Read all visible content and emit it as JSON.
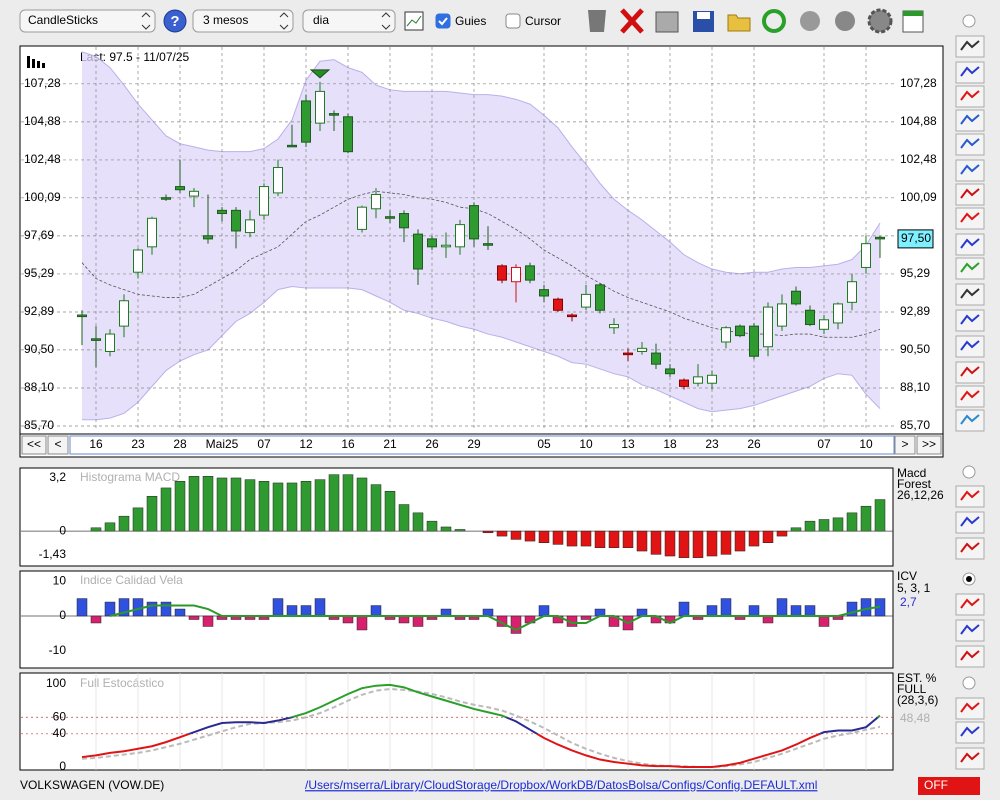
{
  "toolbar": {
    "chart_type": "CandleSticks",
    "help": "?",
    "period": "3 mesos",
    "interval": "dia",
    "guides": {
      "label": "Guies",
      "checked": true
    },
    "cursor": {
      "label": "Cursor",
      "checked": false
    }
  },
  "main": {
    "type": "candlestick",
    "last": "Last: 97.5 - 11/07/25",
    "categories": [
      null,
      "16",
      null,
      null,
      "23",
      null,
      null,
      "28",
      null,
      null,
      "Mai25",
      null,
      null,
      "07",
      null,
      null,
      "12",
      null,
      null,
      "16",
      null,
      null,
      "21",
      null,
      null,
      "26",
      null,
      null,
      "29",
      null,
      null,
      null,
      null,
      "05",
      null,
      null,
      "10",
      null,
      null,
      "13",
      null,
      null,
      "18",
      null,
      null,
      "23",
      null,
      null,
      "26",
      null,
      null,
      null,
      null,
      "07",
      null,
      null,
      "10",
      null
    ],
    "open": [
      92.7,
      91.2,
      90.4,
      92.0,
      95.4,
      97.0,
      100.1,
      100.6,
      100.2,
      97.7,
      99.3,
      99.3,
      97.9,
      99.0,
      100.4,
      103.4,
      106.2,
      104.8,
      105.4,
      105.2,
      98.1,
      99.4,
      98.9,
      99.1,
      97.8,
      97.5,
      97.0,
      97.0,
      99.6,
      97.2,
      95.8,
      94.8,
      95.8,
      94.3,
      93.7,
      92.7,
      93.2,
      94.6,
      92.1,
      90.3,
      90.4,
      90.3,
      89.3,
      88.6,
      88.4,
      88.4,
      91.0,
      92.0,
      92.0,
      90.7,
      92.0,
      94.2,
      93.0,
      91.8,
      92.2,
      93.5,
      95.7,
      97.6
    ],
    "high": [
      93.0,
      92.0,
      91.8,
      94.0,
      96.9,
      98.9,
      100.3,
      102.5,
      100.7,
      100.3,
      99.5,
      99.5,
      99.3,
      101.0,
      102.5,
      104.7,
      106.6,
      107.4,
      105.6,
      105.4,
      99.6,
      100.7,
      99.3,
      99.3,
      98.1,
      97.7,
      97.9,
      98.7,
      99.8,
      98.3,
      95.9,
      95.9,
      96.0,
      94.6,
      93.8,
      92.8,
      94.6,
      94.7,
      92.5,
      90.6,
      91.0,
      90.9,
      89.6,
      88.7,
      89.6,
      89.2,
      92.0,
      92.1,
      92.2,
      93.5,
      94.0,
      94.5,
      93.3,
      92.7,
      93.5,
      95.3,
      97.7,
      97.7
    ],
    "low": [
      90.8,
      89.4,
      90.1,
      91.3,
      95.0,
      96.5,
      99.9,
      100.4,
      99.5,
      97.2,
      98.6,
      96.9,
      97.6,
      98.7,
      100.2,
      103.3,
      103.3,
      104.3,
      104.3,
      102.9,
      97.9,
      98.8,
      98.5,
      97.3,
      94.6,
      96.8,
      96.3,
      96.5,
      97.0,
      96.8,
      94.7,
      93.5,
      94.7,
      93.5,
      92.9,
      92.3,
      93.0,
      92.8,
      91.5,
      89.8,
      90.2,
      89.3,
      88.8,
      88.0,
      88.2,
      88.0,
      90.6,
      91.3,
      89.9,
      90.1,
      91.7,
      93.3,
      92.0,
      91.5,
      91.8,
      93.0,
      95.3,
      96.3
    ],
    "close": [
      92.6,
      91.1,
      91.5,
      93.6,
      96.8,
      98.8,
      100.0,
      100.8,
      100.5,
      97.5,
      99.1,
      98.0,
      98.7,
      100.8,
      102.0,
      103.4,
      103.6,
      106.8,
      105.3,
      103.0,
      99.5,
      100.3,
      98.8,
      98.2,
      95.6,
      97.0,
      97.1,
      98.4,
      97.5,
      97.1,
      94.9,
      95.7,
      94.9,
      93.9,
      93.0,
      92.6,
      94.0,
      93.0,
      91.9,
      90.2,
      90.6,
      89.6,
      89.0,
      88.2,
      88.8,
      88.9,
      91.9,
      91.4,
      90.1,
      93.2,
      93.4,
      93.4,
      92.1,
      92.4,
      93.4,
      94.8,
      97.2,
      97.5
    ],
    "styles": [
      "down",
      "down",
      "up",
      "up",
      "up",
      "up",
      "down",
      "down",
      "up",
      "down",
      "down",
      "down",
      "up",
      "up",
      "up",
      "down",
      "down",
      "up",
      "down",
      "down",
      "up",
      "up",
      "down",
      "down",
      "down",
      "down",
      "up",
      "up",
      "down",
      "down",
      "red",
      "red-up",
      "down",
      "down",
      "red",
      "red",
      "up",
      "down",
      "up",
      "red",
      "up",
      "down",
      "down",
      "red",
      "up",
      "up",
      "up",
      "down",
      "down",
      "up",
      "up",
      "down",
      "down",
      "up",
      "up",
      "up",
      "up",
      "down"
    ],
    "style_colors": {
      "up": [
        "#ffffff",
        "#1f7a1f"
      ],
      "down": [
        "#2f9a2f",
        "#1d5c1d"
      ],
      "red": [
        "#e01414",
        "#8a0000"
      ],
      "red-up": [
        "#ffffff",
        "#d01010"
      ]
    },
    "bands": {
      "color": "#ddd6f8",
      "edge": "#b9b0ea",
      "middle_color": "#555555",
      "upper": [
        109.3,
        109.0,
        108.3,
        107.2,
        106.0,
        105.0,
        104.0,
        103.5,
        103.3,
        103.1,
        103.0,
        103.0,
        103.0,
        103.2,
        103.8,
        105.0,
        107.5,
        108.7,
        108.8,
        108.3,
        108.0,
        107.2,
        106.9,
        106.8,
        106.8,
        106.8,
        106.8,
        106.7,
        106.6,
        106.6,
        106.5,
        106.3,
        106.0,
        105.3,
        104.5,
        103.3,
        102.2,
        101.0,
        100.0,
        99.3,
        98.7,
        98.0,
        97.3,
        96.5,
        96.0,
        95.6,
        95.4,
        95.3,
        95.4,
        95.4,
        95.6,
        95.7,
        95.7,
        95.8,
        95.9,
        96.2,
        97.1,
        98.5
      ],
      "middle": [
        96.0,
        95.0,
        94.6,
        94.3,
        94.0,
        93.9,
        93.8,
        93.8,
        94.0,
        94.5,
        95.0,
        95.5,
        96.2,
        96.6,
        97.0,
        97.8,
        98.6,
        99.0,
        99.5,
        100.0,
        100.3,
        100.5,
        100.4,
        100.3,
        100.1,
        100.0,
        99.8,
        99.5,
        99.4,
        99.1,
        98.6,
        98.1,
        97.5,
        96.8,
        96.3,
        95.8,
        95.2,
        94.7,
        94.2,
        93.8,
        93.5,
        93.2,
        92.9,
        92.5,
        92.2,
        91.9,
        91.7,
        91.6,
        91.5,
        91.5,
        91.4,
        91.5,
        91.5,
        91.3,
        91.3,
        91.3,
        91.5,
        91.8
      ],
      "lower": [
        86.1,
        86.1,
        86.2,
        86.5,
        87.2,
        88.2,
        89.2,
        89.8,
        90.2,
        90.5,
        91.4,
        92.3,
        92.8,
        93.5,
        94.3,
        94.5,
        94.4,
        94.4,
        94.4,
        94.4,
        94.3,
        93.9,
        93.5,
        93.0,
        92.8,
        92.5,
        92.3,
        92.0,
        91.8,
        91.5,
        91.3,
        91.0,
        90.7,
        90.4,
        90.1,
        89.7,
        89.6,
        89.3,
        89.0,
        88.8,
        88.3,
        88.0,
        87.6,
        87.2,
        86.8,
        86.6,
        86.7,
        86.8,
        87.0,
        87.3,
        87.6,
        87.9,
        88.2,
        88.7,
        89.0,
        88.9,
        87.7,
        86.8
      ]
    },
    "ylim": [
      85.45,
      109.6
    ],
    "yticks": [
      {
        "value": 85.7,
        "label": "85,70"
      },
      {
        "value": 88.1,
        "label": "88,10"
      },
      {
        "value": 90.5,
        "label": "90,50"
      },
      {
        "value": 92.89,
        "label": "92,89"
      },
      {
        "value": 95.29,
        "label": "95,29"
      },
      {
        "value": 97.69,
        "label": "97,69"
      },
      {
        "value": 100.09,
        "label": "100,09"
      },
      {
        "value": 102.48,
        "label": "102,48"
      },
      {
        "value": 104.88,
        "label": "104,88"
      },
      {
        "value": 107.28,
        "label": "107,28"
      }
    ],
    "grid": true,
    "last_price": {
      "value": 97.5,
      "label": "97,50"
    },
    "nav": [
      "<<",
      "<",
      ">",
      ">>"
    ]
  },
  "macd": {
    "type": "bar",
    "title": "Histograma MACD",
    "name": "Macd",
    "subtitle": "Forest",
    "params": "26,12,26",
    "colors": {
      "positive": "#2f9a2f",
      "negative": "#e01414"
    },
    "values": [
      0,
      0.2,
      0.5,
      0.9,
      1.4,
      2.1,
      2.6,
      3.0,
      3.3,
      3.3,
      3.2,
      3.2,
      3.1,
      3.0,
      2.9,
      2.9,
      3.0,
      3.1,
      3.4,
      3.4,
      3.2,
      2.8,
      2.4,
      1.6,
      1.1,
      0.6,
      0.25,
      0.1,
      0,
      -0.1,
      -0.3,
      -0.5,
      -0.6,
      -0.7,
      -0.8,
      -0.9,
      -0.9,
      -1.0,
      -1.0,
      -1.0,
      -1.2,
      -1.4,
      -1.5,
      -1.6,
      -1.6,
      -1.5,
      -1.4,
      -1.2,
      -0.9,
      -0.7,
      -0.3,
      0.2,
      0.6,
      0.7,
      0.8,
      1.1,
      1.5,
      1.9
    ],
    "ylim": [
      -2.1,
      3.8
    ],
    "yticks": [
      {
        "value": 3.2,
        "label": "3,2"
      },
      0,
      {
        "value": -1.43,
        "label": "-1,43"
      }
    ]
  },
  "icv": {
    "type": "bar",
    "title": "Indice Calidad Vela",
    "name": "ICV",
    "params": "5, 3, 1",
    "colors": {
      "positive": "#3050e0",
      "negative": "#d8206e",
      "average": "#2a9a2a"
    },
    "values": [
      5,
      -2,
      4,
      5,
      5,
      4,
      4,
      2,
      -1,
      -3,
      -1,
      -1,
      -1,
      -1,
      5,
      3,
      3,
      5,
      -1,
      -2,
      -4,
      3,
      -1,
      -2,
      -3,
      -1,
      2,
      -1,
      -1,
      2,
      -3,
      -5,
      -2,
      3,
      -2,
      -3,
      -1,
      2,
      -3,
      -4,
      2,
      -2,
      -2,
      4,
      -1,
      3,
      5,
      -1,
      3,
      -2,
      5,
      3,
      3,
      -3,
      -1,
      4,
      5,
      5
    ],
    "average": [
      null,
      null,
      0,
      1,
      2,
      3,
      3,
      3,
      3,
      2,
      0,
      0,
      0,
      0,
      0,
      0,
      0,
      0,
      0,
      0,
      0,
      0,
      0,
      0,
      0,
      0,
      0,
      0,
      0,
      0,
      -2,
      -4,
      -2,
      0,
      0,
      -2,
      -2,
      0,
      0,
      -2,
      0,
      0,
      -2,
      0,
      0,
      0,
      0,
      0,
      0,
      0,
      0,
      0,
      0,
      0,
      0,
      1,
      2,
      2.7
    ],
    "average_label": "2,7",
    "ylim": [
      -14.9,
      12.9
    ],
    "yticks": [
      10,
      0,
      -10
    ]
  },
  "stochastic": {
    "type": "line",
    "title": "Full Estocástico",
    "name": "EST. %",
    "subtitle": "FULL",
    "params": "(28,3,6)",
    "colors": {
      "low": "#e01414",
      "mid": "#2a2a90",
      "high": "#2aa02a",
      "d": "#bbbbbb",
      "level": "#c04040"
    },
    "k": [
      12,
      14,
      17,
      19,
      22,
      25,
      30,
      36,
      42,
      48,
      53,
      54,
      54,
      53,
      56,
      60,
      65,
      72,
      80,
      88,
      95,
      98,
      99,
      96,
      90,
      85,
      80,
      75,
      70,
      66,
      62,
      55,
      45,
      35,
      27,
      20,
      14,
      9,
      6,
      4,
      2,
      1,
      1,
      0,
      0,
      0,
      2,
      5,
      10,
      15,
      20,
      27,
      35,
      42,
      44,
      44,
      48,
      62
    ],
    "d": [
      10,
      11,
      13,
      15,
      17,
      20,
      24,
      28,
      33,
      38,
      43,
      48,
      52,
      53,
      54,
      56,
      60,
      65,
      72,
      80,
      87,
      92,
      94,
      93,
      91,
      88,
      84,
      79,
      75,
      72,
      68,
      62,
      55,
      47,
      38,
      29,
      22,
      16,
      11,
      7,
      4,
      2,
      1,
      1,
      0,
      0,
      1,
      3,
      6,
      11,
      16,
      22,
      28,
      34,
      38,
      41,
      45,
      48.48
    ],
    "d_label": "48,48",
    "ylim": [
      -3.6,
      113.3
    ],
    "yticks": [
      100,
      60,
      40,
      0
    ]
  },
  "status": {
    "symbol": "VOLKSWAGEN (VOW.DE)",
    "config_path": "/Users/mserra/Library/CloudStorage/Dropbox/WorkDB/DatosBolsa/Configs/Config.DEFAULT.xml",
    "state": "OFF"
  }
}
